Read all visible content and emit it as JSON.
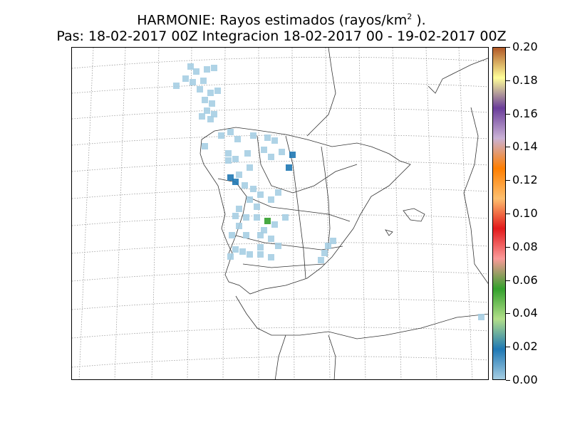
{
  "title": {
    "line1_prefix": "HARMONIE: Rayos estimados  (rayos/km",
    "line1_sup": "2",
    "line1_suffix": " ).",
    "line2": "Pas: 18-02-2017 00Z Integracion 18-02-2017 00 - 19-02-2017 00Z"
  },
  "colorbar": {
    "min": 0.0,
    "max": 0.2,
    "labels": [
      "0.20",
      "0.18",
      "0.16",
      "0.14",
      "0.12",
      "0.10",
      "0.08",
      "0.06",
      "0.04",
      "0.02",
      "0.00"
    ],
    "colors": [
      "#a6cee3",
      "#1f78b4",
      "#b2df8a",
      "#33a02c",
      "#fb9a99",
      "#e31a1c",
      "#fdbf6f",
      "#ff7f00",
      "#cab2d6",
      "#6a3d9a",
      "#ffff99",
      "#b15928"
    ]
  },
  "map": {
    "region": "Iberian Peninsula",
    "graticule": "dotted grey",
    "land_outline_color": "#333333",
    "lightning_color_low": "#a6cee3",
    "lightning_color_mid": "#1f78b4",
    "lightning_color_high": "#33a02c"
  }
}
